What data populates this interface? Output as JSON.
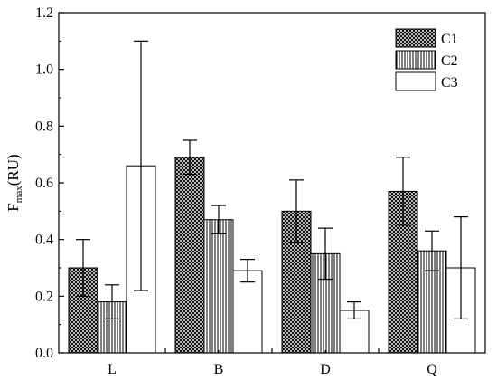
{
  "chart_data": {
    "type": "bar",
    "categories": [
      "L",
      "B",
      "D",
      "Q"
    ],
    "ylabel": {
      "main": "F",
      "sub": "max",
      "rest": "(RU)"
    },
    "ylim": [
      0.0,
      1.2
    ],
    "yticks": [
      "0.0",
      "0.2",
      "0.4",
      "0.6",
      "0.8",
      "1.0",
      "1.2"
    ],
    "ytick_values": [
      0.0,
      0.2,
      0.4,
      0.6,
      0.8,
      1.0,
      1.2
    ],
    "legend_position": "top-right",
    "grid": false,
    "series": [
      {
        "name": "C1",
        "pattern": "crosshatch",
        "values": [
          0.3,
          0.69,
          0.5,
          0.57
        ],
        "err_low": [
          0.2,
          0.63,
          0.39,
          0.45
        ],
        "err_high": [
          0.4,
          0.75,
          0.61,
          0.69
        ]
      },
      {
        "name": "C2",
        "pattern": "vertical-lines",
        "values": [
          0.18,
          0.47,
          0.35,
          0.36
        ],
        "err_low": [
          0.12,
          0.42,
          0.26,
          0.29
        ],
        "err_high": [
          0.24,
          0.52,
          0.44,
          0.43
        ]
      },
      {
        "name": "C3",
        "pattern": "none",
        "values": [
          0.66,
          0.29,
          0.15,
          0.3
        ],
        "err_low": [
          0.22,
          0.25,
          0.12,
          0.12
        ],
        "err_high": [
          1.1,
          0.33,
          0.18,
          0.48
        ]
      }
    ]
  }
}
